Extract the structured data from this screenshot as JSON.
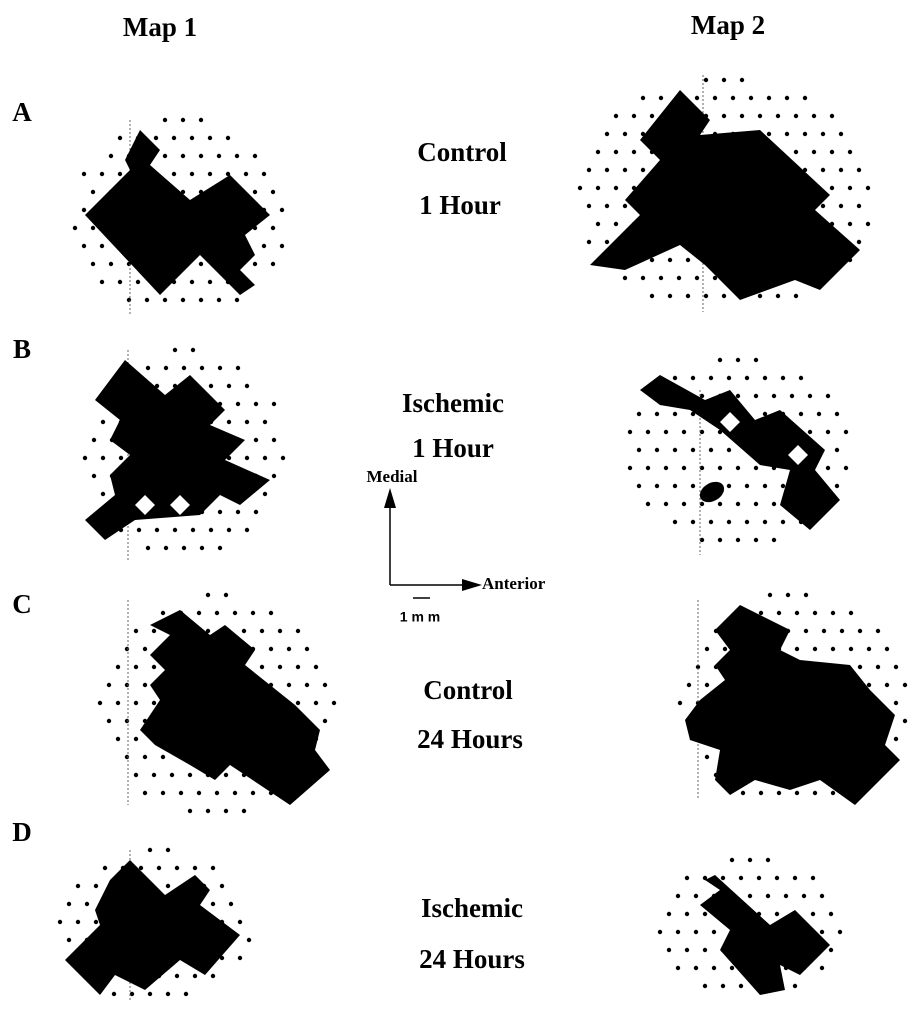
{
  "map_labels": [
    "Map 1",
    "Map 2"
  ],
  "rows": [
    {
      "letter": "A",
      "condition": "Control",
      "time": "1 Hour"
    },
    {
      "letter": "B",
      "condition": "Ischemic",
      "time": "1 Hour"
    },
    {
      "letter": "C",
      "condition": "Control",
      "time": "24 Hours"
    },
    {
      "letter": "D",
      "condition": "Ischemic",
      "time": "24 Hours"
    }
  ],
  "compass": {
    "medial": "Medial",
    "anterior": "Anterior",
    "scale": "1 m m"
  }
}
